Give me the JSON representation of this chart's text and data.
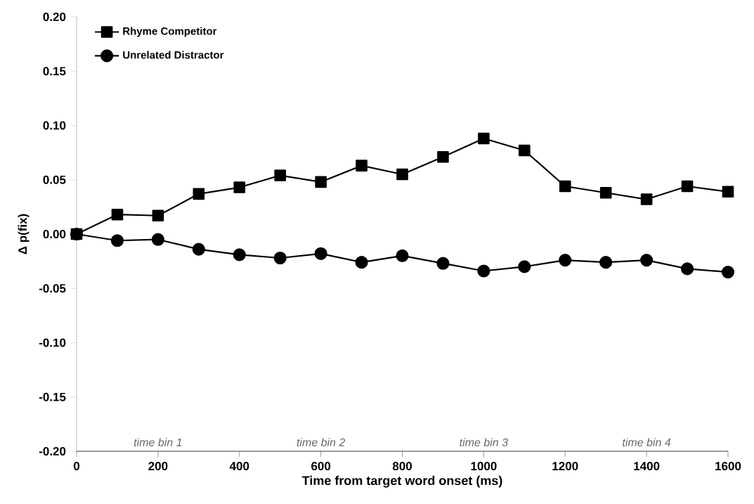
{
  "chart_data": {
    "type": "line",
    "xlabel": "Time from target word onset (ms)",
    "ylabel": "Δ p(fix)",
    "x": [
      0,
      100,
      200,
      300,
      400,
      500,
      600,
      700,
      800,
      900,
      1000,
      1100,
      1200,
      1300,
      1400,
      1500,
      1600
    ],
    "series": [
      {
        "name": "Rhyme Competitor",
        "color": "#000000",
        "marker": "square",
        "values": [
          0,
          0.018,
          0.017,
          0.037,
          0.043,
          0.054,
          0.048,
          0.063,
          0.055,
          0.071,
          0.088,
          0.077,
          0.044,
          0.038,
          0.032,
          0.044,
          0.039
        ]
      },
      {
        "name": "Unrelated Distractor",
        "color": "#000000",
        "marker": "circle",
        "values": [
          0,
          -0.006,
          -0.005,
          -0.014,
          -0.019,
          -0.022,
          -0.018,
          -0.026,
          -0.02,
          -0.027,
          -0.034,
          -0.03,
          -0.024,
          -0.026,
          -0.024,
          -0.032,
          -0.035
        ]
      }
    ],
    "xlim": [
      0,
      1600
    ],
    "xticks": [
      0,
      200,
      400,
      600,
      800,
      1000,
      1200,
      1400,
      1600
    ],
    "ylim": [
      -0.2,
      0.2
    ],
    "yticks": [
      {
        "value": -0.2,
        "label": "-0.20"
      },
      {
        "value": -0.15,
        "label": "-0.15"
      },
      {
        "value": -0.1,
        "label": "-0.10"
      },
      {
        "value": -0.05,
        "label": "-0.05"
      },
      {
        "value": 0,
        "label": "0.00"
      },
      {
        "value": 0.05,
        "label": "0.05"
      },
      {
        "value": 0.1,
        "label": "0.10"
      },
      {
        "value": 0.15,
        "label": "0.15"
      },
      {
        "value": 0.2,
        "label": "0.20"
      }
    ],
    "annotations": [
      "time bin 1",
      "time bin 2",
      "time bin 3",
      "time bin 4"
    ],
    "legend": "top left",
    "grid": false,
    "line_style": "solid"
  }
}
